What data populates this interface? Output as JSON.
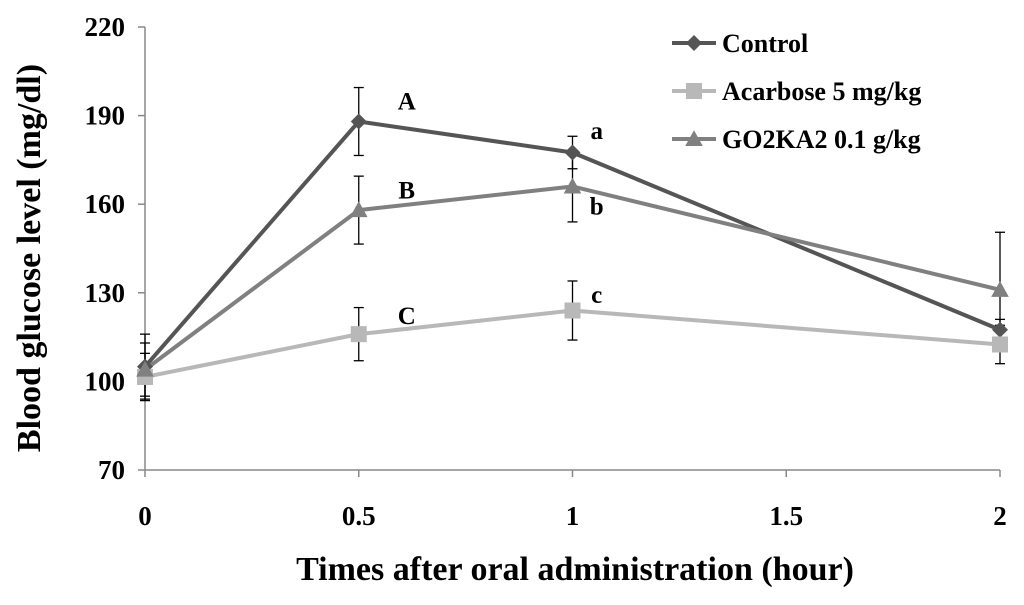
{
  "chart_data": {
    "type": "line",
    "xlabel": "Times after oral administration (hour)",
    "ylabel": "Blood glucose level (mg/dl)",
    "xlim": [
      0,
      2
    ],
    "ylim": [
      70,
      220
    ],
    "xticks": [
      0,
      0.5,
      1,
      1.5,
      2
    ],
    "xtick_labels": [
      "0",
      "0.5",
      "1",
      "1.5",
      "2"
    ],
    "yticks": [
      70,
      100,
      130,
      160,
      190,
      220
    ],
    "ytick_labels": [
      "70",
      "100",
      "130",
      "160",
      "190",
      "220"
    ],
    "grid": false,
    "legend_position": "top-right",
    "series": [
      {
        "name": "Control",
        "color": "#555555",
        "marker": "diamond",
        "x": [
          0,
          0.5,
          1,
          2
        ],
        "y": [
          105,
          188,
          177.5,
          117.5
        ],
        "error": [
          11,
          11.5,
          5.5,
          3.5
        ]
      },
      {
        "name": "Acarbose 5 mg/kg",
        "color": "#b8b8b8",
        "marker": "square",
        "x": [
          0,
          0.5,
          1,
          2
        ],
        "y": [
          101.5,
          116,
          124,
          112.5
        ],
        "error": [
          8,
          9,
          10,
          6.5
        ]
      },
      {
        "name": "GO2KA2 0.1 g/kg",
        "color": "#808080",
        "marker": "triangle",
        "x": [
          0,
          0.5,
          1,
          2
        ],
        "y": [
          104,
          158,
          166,
          131
        ],
        "error": [
          9,
          11.5,
          12,
          19.5
        ]
      }
    ],
    "annotations": [
      {
        "text": "A",
        "x": 0.5,
        "y": 192
      },
      {
        "text": "B",
        "x": 0.5,
        "y": 162
      },
      {
        "text": "C",
        "x": 0.5,
        "y": 119.5
      },
      {
        "text": "a",
        "x": 1.08,
        "y": 182
      },
      {
        "text": "b",
        "x": 1.08,
        "y": 156.5
      },
      {
        "text": "c",
        "x": 1.08,
        "y": 126.5
      }
    ]
  }
}
